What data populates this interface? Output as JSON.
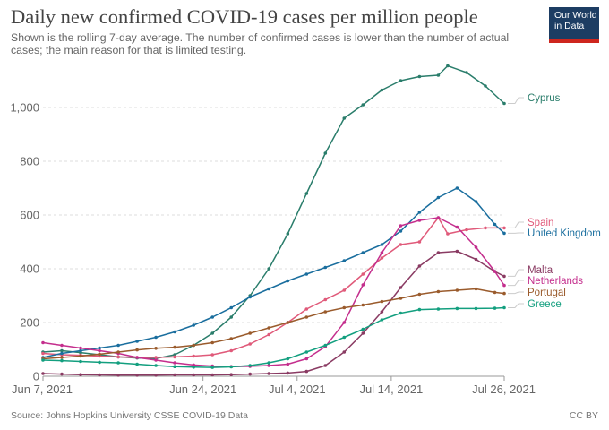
{
  "header": {
    "title": "Daily new confirmed COVID-19 cases per million people",
    "subtitle": "Shown is the rolling 7-day average. The number of confirmed cases is lower than the number of actual cases; the main reason for that is limited testing.",
    "logo_line1": "Our World",
    "logo_line2": "in Data"
  },
  "footer": {
    "source": "Source: Johns Hopkins University CSSE COVID-19 Data",
    "license": "CC BY"
  },
  "colors": {
    "Cyprus": "#2a7d6b",
    "Spain": "#e05a7a",
    "United Kingdom": "#1a6e9e",
    "Malta": "#8a3b63",
    "Netherlands": "#c42e8d",
    "Portugal": "#9a5b2c",
    "Greece": "#139f7f"
  },
  "chart_data": {
    "type": "line",
    "title": "Daily new confirmed COVID-19 cases per million people",
    "xlabel": "",
    "ylabel": "",
    "x_range": [
      "2021-06-07",
      "2021-07-26"
    ],
    "ylim": [
      0,
      1150
    ],
    "y_ticks": [
      0,
      200,
      400,
      600,
      800,
      1000
    ],
    "y_tick_labels": [
      "0",
      "200",
      "400",
      "600",
      "800",
      "1,000"
    ],
    "x_ticks": [
      "2021-06-07",
      "2021-06-24",
      "2021-07-04",
      "2021-07-14",
      "2021-07-26"
    ],
    "x_tick_labels": [
      "Jun 7, 2021",
      "Jun 24, 2021",
      "Jul 4, 2021",
      "Jul 14, 2021",
      "Jul 26, 2021"
    ],
    "grid": true,
    "legend": "right-end labels",
    "series": [
      {
        "name": "Cyprus",
        "points": [
          [
            "2021-06-07",
            90
          ],
          [
            "2021-06-09",
            95
          ],
          [
            "2021-06-11",
            88
          ],
          [
            "2021-06-13",
            80
          ],
          [
            "2021-06-15",
            72
          ],
          [
            "2021-06-17",
            68
          ],
          [
            "2021-06-19",
            66
          ],
          [
            "2021-06-21",
            80
          ],
          [
            "2021-06-23",
            115
          ],
          [
            "2021-06-25",
            160
          ],
          [
            "2021-06-27",
            220
          ],
          [
            "2021-06-29",
            300
          ],
          [
            "2021-07-01",
            400
          ],
          [
            "2021-07-03",
            530
          ],
          [
            "2021-07-05",
            680
          ],
          [
            "2021-07-07",
            830
          ],
          [
            "2021-07-09",
            960
          ],
          [
            "2021-07-11",
            1010
          ],
          [
            "2021-07-13",
            1065
          ],
          [
            "2021-07-15",
            1100
          ],
          [
            "2021-07-17",
            1115
          ],
          [
            "2021-07-19",
            1120
          ],
          [
            "2021-07-20",
            1155
          ],
          [
            "2021-07-22",
            1130
          ],
          [
            "2021-07-24",
            1080
          ],
          [
            "2021-07-26",
            1015
          ]
        ]
      },
      {
        "name": "Spain",
        "points": [
          [
            "2021-06-07",
            85
          ],
          [
            "2021-06-09",
            80
          ],
          [
            "2021-06-11",
            78
          ],
          [
            "2021-06-13",
            75
          ],
          [
            "2021-06-15",
            72
          ],
          [
            "2021-06-17",
            70
          ],
          [
            "2021-06-19",
            70
          ],
          [
            "2021-06-21",
            72
          ],
          [
            "2021-06-23",
            75
          ],
          [
            "2021-06-25",
            80
          ],
          [
            "2021-06-27",
            95
          ],
          [
            "2021-06-29",
            120
          ],
          [
            "2021-07-01",
            155
          ],
          [
            "2021-07-03",
            200
          ],
          [
            "2021-07-05",
            250
          ],
          [
            "2021-07-07",
            285
          ],
          [
            "2021-07-09",
            320
          ],
          [
            "2021-07-11",
            380
          ],
          [
            "2021-07-13",
            440
          ],
          [
            "2021-07-15",
            490
          ],
          [
            "2021-07-17",
            500
          ],
          [
            "2021-07-19",
            590
          ],
          [
            "2021-07-20",
            530
          ],
          [
            "2021-07-22",
            545
          ],
          [
            "2021-07-24",
            552
          ],
          [
            "2021-07-26",
            552
          ]
        ]
      },
      {
        "name": "United Kingdom",
        "points": [
          [
            "2021-06-07",
            70
          ],
          [
            "2021-06-09",
            85
          ],
          [
            "2021-06-11",
            95
          ],
          [
            "2021-06-13",
            105
          ],
          [
            "2021-06-15",
            115
          ],
          [
            "2021-06-17",
            130
          ],
          [
            "2021-06-19",
            145
          ],
          [
            "2021-06-21",
            165
          ],
          [
            "2021-06-23",
            190
          ],
          [
            "2021-06-25",
            220
          ],
          [
            "2021-06-27",
            255
          ],
          [
            "2021-06-29",
            295
          ],
          [
            "2021-07-01",
            325
          ],
          [
            "2021-07-03",
            355
          ],
          [
            "2021-07-05",
            380
          ],
          [
            "2021-07-07",
            405
          ],
          [
            "2021-07-09",
            430
          ],
          [
            "2021-07-11",
            460
          ],
          [
            "2021-07-13",
            490
          ],
          [
            "2021-07-15",
            540
          ],
          [
            "2021-07-17",
            610
          ],
          [
            "2021-07-19",
            665
          ],
          [
            "2021-07-21",
            700
          ],
          [
            "2021-07-23",
            650
          ],
          [
            "2021-07-25",
            565
          ],
          [
            "2021-07-26",
            532
          ]
        ]
      },
      {
        "name": "Malta",
        "points": [
          [
            "2021-06-07",
            10
          ],
          [
            "2021-06-09",
            8
          ],
          [
            "2021-06-11",
            6
          ],
          [
            "2021-06-13",
            5
          ],
          [
            "2021-06-15",
            4
          ],
          [
            "2021-06-17",
            4
          ],
          [
            "2021-06-19",
            4
          ],
          [
            "2021-06-21",
            5
          ],
          [
            "2021-06-23",
            5
          ],
          [
            "2021-06-25",
            5
          ],
          [
            "2021-06-27",
            6
          ],
          [
            "2021-06-29",
            8
          ],
          [
            "2021-07-01",
            10
          ],
          [
            "2021-07-03",
            12
          ],
          [
            "2021-07-05",
            18
          ],
          [
            "2021-07-07",
            40
          ],
          [
            "2021-07-09",
            90
          ],
          [
            "2021-07-11",
            160
          ],
          [
            "2021-07-13",
            240
          ],
          [
            "2021-07-15",
            330
          ],
          [
            "2021-07-17",
            410
          ],
          [
            "2021-07-19",
            460
          ],
          [
            "2021-07-21",
            465
          ],
          [
            "2021-07-23",
            435
          ],
          [
            "2021-07-25",
            390
          ],
          [
            "2021-07-26",
            372
          ]
        ]
      },
      {
        "name": "Netherlands",
        "points": [
          [
            "2021-06-07",
            125
          ],
          [
            "2021-06-09",
            115
          ],
          [
            "2021-06-11",
            105
          ],
          [
            "2021-06-13",
            95
          ],
          [
            "2021-06-15",
            85
          ],
          [
            "2021-06-17",
            70
          ],
          [
            "2021-06-19",
            60
          ],
          [
            "2021-06-21",
            50
          ],
          [
            "2021-06-23",
            42
          ],
          [
            "2021-06-25",
            38
          ],
          [
            "2021-06-27",
            36
          ],
          [
            "2021-06-29",
            37
          ],
          [
            "2021-07-01",
            40
          ],
          [
            "2021-07-03",
            45
          ],
          [
            "2021-07-05",
            65
          ],
          [
            "2021-07-07",
            110
          ],
          [
            "2021-07-09",
            200
          ],
          [
            "2021-07-11",
            340
          ],
          [
            "2021-07-13",
            460
          ],
          [
            "2021-07-15",
            560
          ],
          [
            "2021-07-17",
            580
          ],
          [
            "2021-07-19",
            590
          ],
          [
            "2021-07-21",
            555
          ],
          [
            "2021-07-23",
            480
          ],
          [
            "2021-07-25",
            390
          ],
          [
            "2021-07-26",
            338
          ]
        ]
      },
      {
        "name": "Portugal",
        "points": [
          [
            "2021-06-07",
            65
          ],
          [
            "2021-06-09",
            70
          ],
          [
            "2021-06-11",
            75
          ],
          [
            "2021-06-13",
            82
          ],
          [
            "2021-06-15",
            90
          ],
          [
            "2021-06-17",
            98
          ],
          [
            "2021-06-19",
            104
          ],
          [
            "2021-06-21",
            108
          ],
          [
            "2021-06-23",
            115
          ],
          [
            "2021-06-25",
            125
          ],
          [
            "2021-06-27",
            140
          ],
          [
            "2021-06-29",
            160
          ],
          [
            "2021-07-01",
            180
          ],
          [
            "2021-07-03",
            200
          ],
          [
            "2021-07-05",
            220
          ],
          [
            "2021-07-07",
            240
          ],
          [
            "2021-07-09",
            255
          ],
          [
            "2021-07-11",
            265
          ],
          [
            "2021-07-13",
            278
          ],
          [
            "2021-07-15",
            290
          ],
          [
            "2021-07-17",
            305
          ],
          [
            "2021-07-19",
            315
          ],
          [
            "2021-07-21",
            320
          ],
          [
            "2021-07-23",
            325
          ],
          [
            "2021-07-25",
            312
          ],
          [
            "2021-07-26",
            308
          ]
        ]
      },
      {
        "name": "Greece",
        "points": [
          [
            "2021-06-07",
            60
          ],
          [
            "2021-06-09",
            58
          ],
          [
            "2021-06-11",
            55
          ],
          [
            "2021-06-13",
            52
          ],
          [
            "2021-06-15",
            50
          ],
          [
            "2021-06-17",
            45
          ],
          [
            "2021-06-19",
            40
          ],
          [
            "2021-06-21",
            36
          ],
          [
            "2021-06-23",
            34
          ],
          [
            "2021-06-25",
            33
          ],
          [
            "2021-06-27",
            35
          ],
          [
            "2021-06-29",
            40
          ],
          [
            "2021-07-01",
            50
          ],
          [
            "2021-07-03",
            65
          ],
          [
            "2021-07-05",
            90
          ],
          [
            "2021-07-07",
            115
          ],
          [
            "2021-07-09",
            145
          ],
          [
            "2021-07-11",
            175
          ],
          [
            "2021-07-13",
            210
          ],
          [
            "2021-07-15",
            235
          ],
          [
            "2021-07-17",
            248
          ],
          [
            "2021-07-19",
            250
          ],
          [
            "2021-07-21",
            252
          ],
          [
            "2021-07-23",
            252
          ],
          [
            "2021-07-25",
            253
          ],
          [
            "2021-07-26",
            255
          ]
        ]
      }
    ]
  }
}
